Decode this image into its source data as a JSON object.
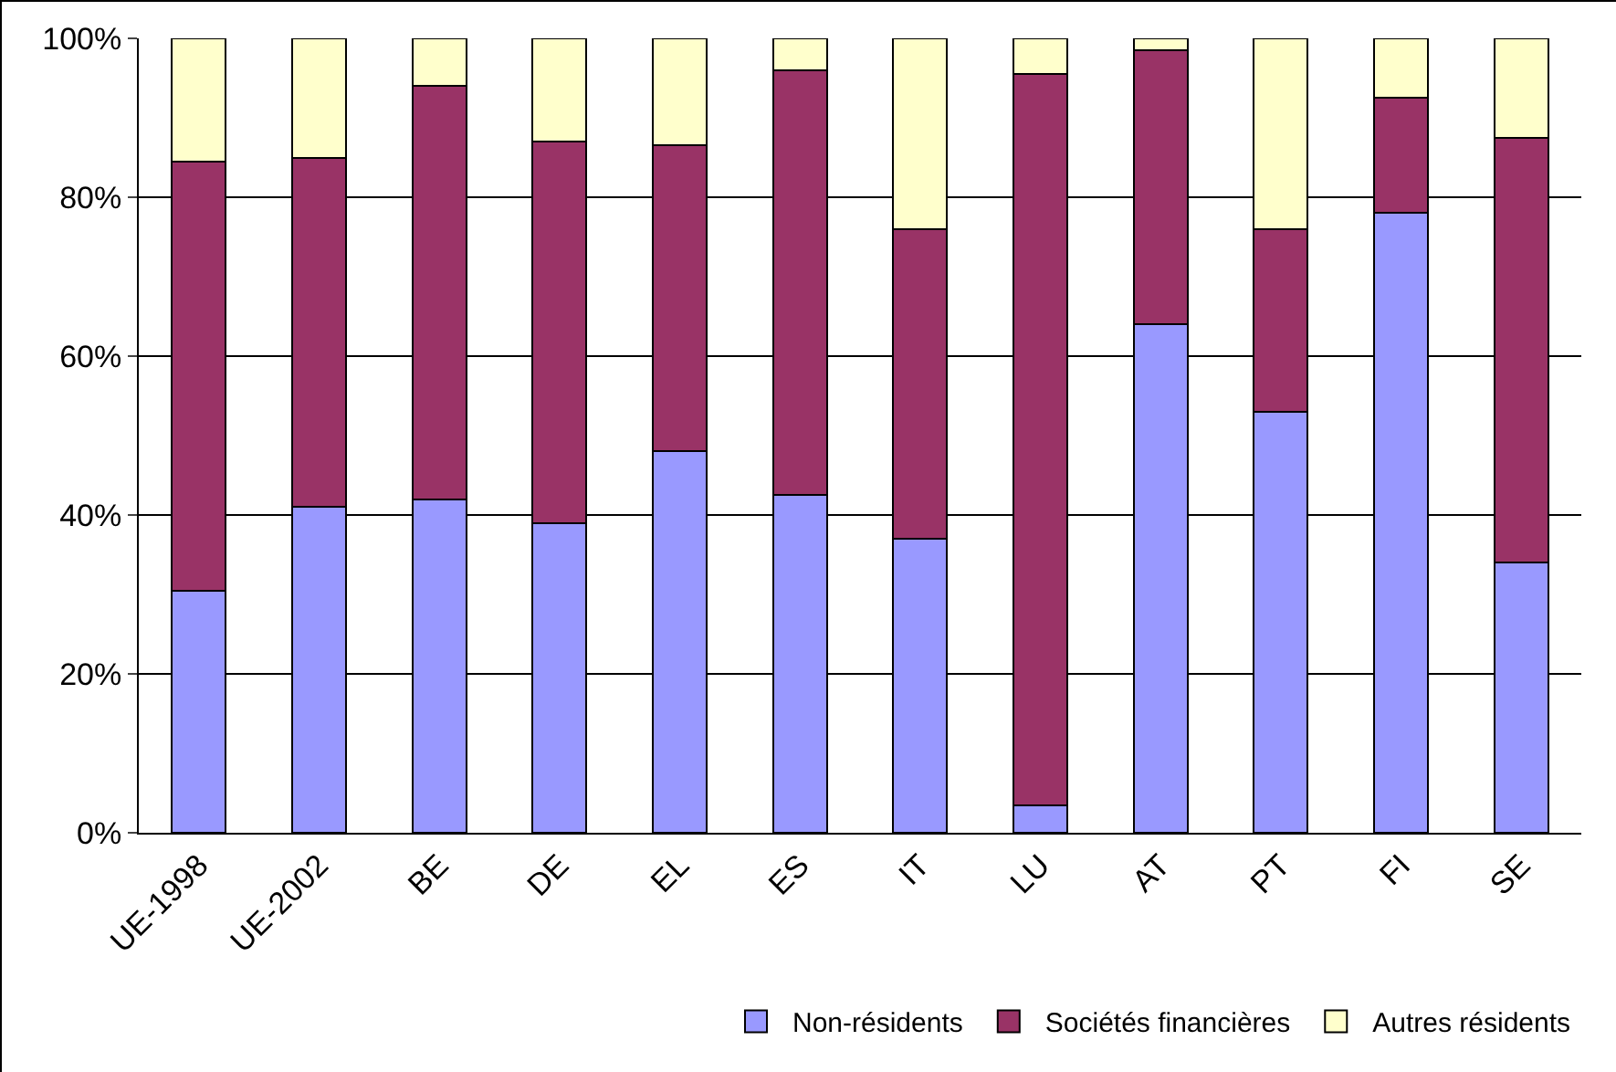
{
  "chart_data": {
    "type": "bar",
    "stacked": true,
    "categories": [
      "UE-1998",
      "UE-2002",
      "BE",
      "DE",
      "EL",
      "ES",
      "IT",
      "LU",
      "AT",
      "PT",
      "FI",
      "SE"
    ],
    "series": [
      {
        "name": "Non-résidents",
        "color": "#9999ff",
        "values": [
          30.5,
          41,
          42,
          39,
          48,
          42.5,
          37,
          3.5,
          64,
          53,
          78,
          34
        ]
      },
      {
        "name": "Sociétés financières",
        "color": "#993366",
        "values": [
          54,
          44,
          52,
          48,
          38.5,
          53.5,
          39,
          92,
          34.5,
          23,
          14.5,
          53.5
        ]
      },
      {
        "name": "Autres résidents",
        "color": "#ffffcc",
        "values": [
          15.5,
          15,
          6,
          13,
          13.5,
          4,
          24,
          4.5,
          1.5,
          24,
          7.5,
          12.5
        ]
      }
    ],
    "ylim": [
      0,
      100
    ],
    "yticks": [
      {
        "value": 0,
        "label": "0%"
      },
      {
        "value": 20,
        "label": "20%"
      },
      {
        "value": 40,
        "label": "40%"
      },
      {
        "value": 60,
        "label": "60%"
      },
      {
        "value": 80,
        "label": "80%"
      },
      {
        "value": 100,
        "label": "100%"
      }
    ],
    "grid": "y",
    "legend": "bottom"
  }
}
